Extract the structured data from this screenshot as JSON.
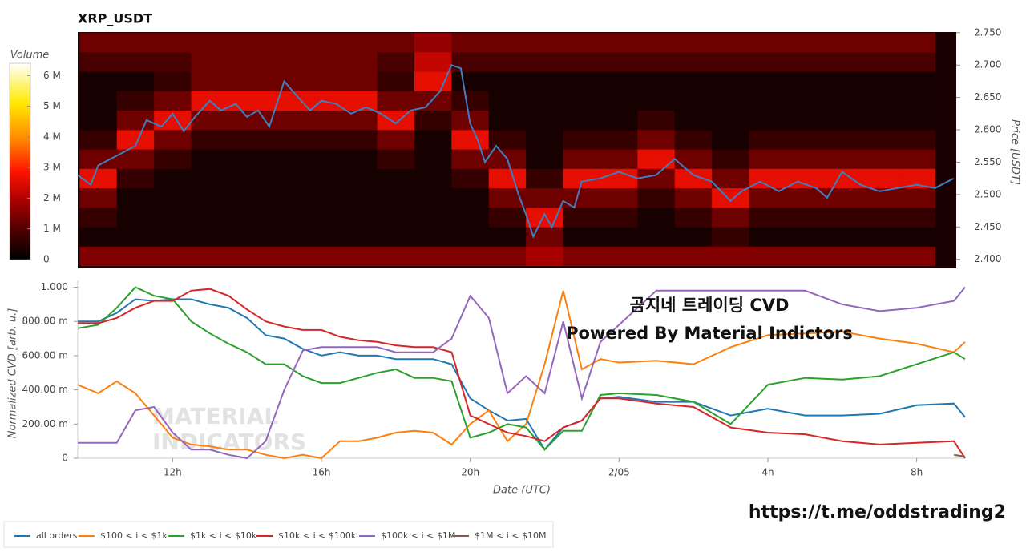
{
  "chart_data": [
    {
      "type": "heatmap",
      "title": "XRP_USDT",
      "xlim": [
        9.45,
        33.07
      ],
      "ylim": [
        2.386,
        2.751
      ],
      "yticks": [
        {
          "value": 2.4,
          "label": "2.400"
        },
        {
          "value": 2.45,
          "label": "2.450"
        },
        {
          "value": 2.5,
          "label": "2.500"
        },
        {
          "value": 2.55,
          "label": "2.550"
        },
        {
          "value": 2.6,
          "label": "2.600"
        },
        {
          "value": 2.65,
          "label": "2.650"
        },
        {
          "value": 2.7,
          "label": "2.700"
        },
        {
          "value": 2.75,
          "label": "2.750"
        }
      ],
      "ylabel": "Price [USDT]",
      "time_bins": [
        9.5,
        10.5,
        11.5,
        12.5,
        13.5,
        14.5,
        15.5,
        16.5,
        17.5,
        18.5,
        19.5,
        20.5,
        21.5,
        22.5,
        23.5,
        24.5,
        25.5,
        26.5,
        27.5,
        28.5,
        29.5,
        30.5,
        31.5,
        32.5
      ],
      "price_bins": [
        2.39,
        2.42,
        2.45,
        2.48,
        2.51,
        2.54,
        2.57,
        2.6,
        2.63,
        2.66,
        2.69,
        2.72,
        2.75
      ],
      "z": [
        [
          1.5,
          1.5,
          1.5,
          1.5,
          1.5,
          1.5,
          1.5,
          1.5,
          1.5,
          1.5,
          1.5,
          1.5,
          1.9,
          1.5,
          1.5,
          1.5,
          1.5,
          1.5,
          1.5,
          1.5,
          1.5,
          1.5,
          1.5
        ],
        [
          0.3,
          0.3,
          0.3,
          0.3,
          0.3,
          0.3,
          0.3,
          0.3,
          0.3,
          0.3,
          0.3,
          0.3,
          1.3,
          0.3,
          0.3,
          0.3,
          0.3,
          0.7,
          0.3,
          0.3,
          0.3,
          0.3,
          0.3
        ],
        [
          0.7,
          0.3,
          0.3,
          0.3,
          0.3,
          0.3,
          0.3,
          0.3,
          0.3,
          0.3,
          0.3,
          0.7,
          2.6,
          0.7,
          0.7,
          0.3,
          0.7,
          1.3,
          0.7,
          0.7,
          0.7,
          0.7,
          0.7
        ],
        [
          1.3,
          0.3,
          0.3,
          0.3,
          0.3,
          0.3,
          0.3,
          0.3,
          0.3,
          0.3,
          0.3,
          1.3,
          1.3,
          1.3,
          1.3,
          0.7,
          1.3,
          2.6,
          1.3,
          1.3,
          1.3,
          1.3,
          1.3
        ],
        [
          2.6,
          0.7,
          0.3,
          0.3,
          0.3,
          0.3,
          0.3,
          0.3,
          0.3,
          0.3,
          0.7,
          2.6,
          0.7,
          2.6,
          2.6,
          1.3,
          2.6,
          1.3,
          2.6,
          2.6,
          2.6,
          2.6,
          2.6
        ],
        [
          1.3,
          1.3,
          0.7,
          0.3,
          0.3,
          0.3,
          0.3,
          0.3,
          0.7,
          0.3,
          1.3,
          1.3,
          0.3,
          1.3,
          1.3,
          2.6,
          1.3,
          0.7,
          1.3,
          1.3,
          1.3,
          1.3,
          1.3
        ],
        [
          0.7,
          2.6,
          1.3,
          0.7,
          0.7,
          0.7,
          0.7,
          0.7,
          1.3,
          0.3,
          2.6,
          0.7,
          0.3,
          0.7,
          0.7,
          1.3,
          0.7,
          0.3,
          0.7,
          0.7,
          0.7,
          0.7,
          0.7
        ],
        [
          0.3,
          1.3,
          2.6,
          1.3,
          1.3,
          1.3,
          1.3,
          1.3,
          2.6,
          0.7,
          1.3,
          0.3,
          0.3,
          0.3,
          0.3,
          0.7,
          0.3,
          0.3,
          0.3,
          0.3,
          0.3,
          0.3,
          0.3
        ],
        [
          0.3,
          0.7,
          1.3,
          2.6,
          2.6,
          2.6,
          2.6,
          2.6,
          1.3,
          1.3,
          0.7,
          0.3,
          0.3,
          0.3,
          0.3,
          0.3,
          0.3,
          0.3,
          0.3,
          0.3,
          0.3,
          0.3,
          0.3
        ],
        [
          0.3,
          0.3,
          0.7,
          1.3,
          1.3,
          1.3,
          1.3,
          1.3,
          0.7,
          2.6,
          0.3,
          0.3,
          0.3,
          0.3,
          0.3,
          0.3,
          0.3,
          0.3,
          0.3,
          0.3,
          0.3,
          0.3,
          0.3
        ],
        [
          0.9,
          0.9,
          0.9,
          1.3,
          1.3,
          1.3,
          1.3,
          1.3,
          0.9,
          2.2,
          0.9,
          0.9,
          0.9,
          0.9,
          0.9,
          0.9,
          0.9,
          0.9,
          0.9,
          0.9,
          0.9,
          0.9,
          0.9
        ],
        [
          1.3,
          1.3,
          1.3,
          1.3,
          1.3,
          1.3,
          1.3,
          1.3,
          1.3,
          1.7,
          1.3,
          1.3,
          1.3,
          1.3,
          1.3,
          1.3,
          1.3,
          1.3,
          1.3,
          1.3,
          1.3,
          1.3,
          1.3
        ]
      ],
      "colorbar": {
        "label": "Volume",
        "lim": [
          0,
          6.4
        ],
        "ticks": [
          0,
          {
            "value": 1,
            "label": "1 M"
          },
          {
            "value": 2,
            "label": "2 M"
          },
          {
            "value": 3,
            "label": "3 M"
          },
          {
            "value": 4,
            "label": "4 M"
          },
          {
            "value": 5,
            "label": "5 M"
          },
          {
            "value": 6,
            "label": "6 M"
          }
        ]
      },
      "price_line": {
        "color": "#3d7fc0",
        "x": [
          9.45,
          9.8,
          10.0,
          10.5,
          11.0,
          11.3,
          11.7,
          12.0,
          12.3,
          12.6,
          13.0,
          13.3,
          13.7,
          14.0,
          14.3,
          14.6,
          15.0,
          15.3,
          15.7,
          16.0,
          16.4,
          16.8,
          17.2,
          17.6,
          18.0,
          18.4,
          18.8,
          19.2,
          19.5,
          19.75,
          20.0,
          20.2,
          20.4,
          20.7,
          21.0,
          21.3,
          21.5,
          21.7,
          22.0,
          22.2,
          22.5,
          22.8,
          23.0,
          23.5,
          24.0,
          24.5,
          25.0,
          25.5,
          26.0,
          26.5,
          27.0,
          27.3,
          27.8,
          28.3,
          28.8,
          29.3,
          29.6,
          30.0,
          30.5,
          31.0,
          31.5,
          32.0,
          32.5,
          33.0
        ],
        "values": [
          2.53,
          2.515,
          2.545,
          2.56,
          2.575,
          2.615,
          2.605,
          2.625,
          2.598,
          2.62,
          2.645,
          2.63,
          2.64,
          2.62,
          2.63,
          2.605,
          2.675,
          2.655,
          2.63,
          2.645,
          2.64,
          2.625,
          2.635,
          2.625,
          2.61,
          2.63,
          2.635,
          2.66,
          2.7,
          2.695,
          2.61,
          2.585,
          2.55,
          2.575,
          2.555,
          2.5,
          2.47,
          2.435,
          2.47,
          2.45,
          2.49,
          2.48,
          2.52,
          2.525,
          2.535,
          2.525,
          2.53,
          2.555,
          2.53,
          2.52,
          2.49,
          2.505,
          2.52,
          2.505,
          2.52,
          2.51,
          2.495,
          2.535,
          2.515,
          2.505,
          2.51,
          2.515,
          2.51,
          2.525
        ]
      }
    },
    {
      "type": "line",
      "xlim": [
        9.45,
        33.3
      ],
      "xticks": [
        {
          "value": 12,
          "label": "12h"
        },
        {
          "value": 16,
          "label": "16h"
        },
        {
          "value": 20,
          "label": "20h"
        },
        {
          "value": 24,
          "label": "2/05"
        },
        {
          "value": 28,
          "label": "4h"
        },
        {
          "value": 32,
          "label": "8h"
        }
      ],
      "xlabel": "Date (UTC)",
      "ylim": [
        0,
        1.04
      ],
      "yticks": [
        0,
        {
          "value": 0.2,
          "label": "200.00 m"
        },
        {
          "value": 0.4,
          "label": "400.00 m"
        },
        {
          "value": 0.6,
          "label": "600.00 m"
        },
        {
          "value": 0.8,
          "label": "800.00 m"
        },
        {
          "value": 1,
          "label": "1.000"
        }
      ],
      "ylabel": "Normalized CVD [arb. u.]",
      "x": [
        9.45,
        10,
        10.5,
        11,
        11.5,
        12,
        12.5,
        13,
        13.5,
        14,
        14.5,
        15,
        15.5,
        16,
        16.5,
        17,
        17.5,
        18,
        18.5,
        19,
        19.5,
        20,
        20.5,
        21,
        21.5,
        22,
        22.5,
        23,
        23.5,
        24,
        25,
        26,
        27,
        28,
        29,
        30,
        31,
        32,
        33,
        33.3
      ],
      "series": [
        {
          "name": "all orders",
          "color": "#1f77b4",
          "values": [
            0.8,
            0.8,
            0.85,
            0.93,
            0.92,
            0.93,
            0.93,
            0.9,
            0.88,
            0.82,
            0.72,
            0.7,
            0.64,
            0.6,
            0.62,
            0.6,
            0.6,
            0.58,
            0.58,
            0.58,
            0.55,
            0.35,
            0.28,
            0.22,
            0.23,
            0.05,
            0.18,
            0.22,
            0.35,
            0.36,
            0.33,
            0.33,
            0.25,
            0.29,
            0.25,
            0.25,
            0.26,
            0.31,
            0.32,
            0.24
          ]
        },
        {
          "name": "$100 < i < $1k",
          "color": "#ff7f0e",
          "values": [
            0.43,
            0.38,
            0.45,
            0.38,
            0.25,
            0.12,
            0.08,
            0.07,
            0.05,
            0.05,
            0.02,
            0.0,
            0.02,
            0.0,
            0.1,
            0.1,
            0.12,
            0.15,
            0.16,
            0.15,
            0.08,
            0.2,
            0.28,
            0.1,
            0.2,
            0.55,
            0.98,
            0.52,
            0.58,
            0.56,
            0.57,
            0.55,
            0.65,
            0.72,
            0.73,
            0.74,
            0.7,
            0.67,
            0.62,
            0.68
          ]
        },
        {
          "name": "$1k < i < $10k",
          "color": "#2ca02c",
          "values": [
            0.76,
            0.78,
            0.88,
            1.0,
            0.95,
            0.93,
            0.8,
            0.73,
            0.67,
            0.62,
            0.55,
            0.55,
            0.48,
            0.44,
            0.44,
            0.47,
            0.5,
            0.52,
            0.47,
            0.47,
            0.45,
            0.12,
            0.15,
            0.2,
            0.18,
            0.05,
            0.16,
            0.16,
            0.37,
            0.38,
            0.37,
            0.33,
            0.2,
            0.43,
            0.47,
            0.46,
            0.48,
            0.55,
            0.62,
            0.58
          ]
        },
        {
          "name": "$10k < i < $100k",
          "color": "#d62728",
          "values": [
            0.79,
            0.79,
            0.82,
            0.88,
            0.92,
            0.92,
            0.98,
            0.99,
            0.95,
            0.87,
            0.8,
            0.77,
            0.75,
            0.75,
            0.71,
            0.69,
            0.68,
            0.66,
            0.65,
            0.65,
            0.62,
            0.25,
            0.2,
            0.15,
            0.13,
            0.1,
            0.18,
            0.22,
            0.35,
            0.35,
            0.32,
            0.3,
            0.18,
            0.15,
            0.14,
            0.1,
            0.08,
            0.09,
            0.1,
            0.0
          ]
        },
        {
          "name": "$100k < i < $1M",
          "color": "#9467bd",
          "values": [
            0.09,
            0.09,
            0.09,
            0.28,
            0.3,
            0.15,
            0.05,
            0.05,
            0.02,
            0.0,
            0.1,
            0.4,
            0.63,
            0.65,
            0.65,
            0.65,
            0.65,
            0.62,
            0.62,
            0.62,
            0.7,
            0.95,
            0.82,
            0.38,
            0.48,
            0.38,
            0.8,
            0.35,
            0.68,
            0.78,
            0.98,
            0.98,
            0.98,
            0.98,
            0.98,
            0.9,
            0.86,
            0.88,
            0.92,
            1.0
          ]
        },
        {
          "name": "$1M < i < $10M",
          "color": "#8c564b",
          "values": [
            null,
            null,
            null,
            null,
            null,
            null,
            null,
            null,
            null,
            null,
            null,
            null,
            null,
            null,
            null,
            null,
            null,
            null,
            null,
            null,
            null,
            null,
            null,
            null,
            null,
            null,
            null,
            null,
            null,
            null,
            null,
            null,
            null,
            null,
            null,
            null,
            null,
            null,
            0.02,
            0.01
          ]
        }
      ]
    }
  ],
  "annotations": [
    "곰지네 트레이딩 CVD",
    "Powered By Material Indictors"
  ],
  "watermark": [
    "MATERIAL",
    "INDICATORS"
  ],
  "footer_link": "https://t.me/oddstrading2"
}
